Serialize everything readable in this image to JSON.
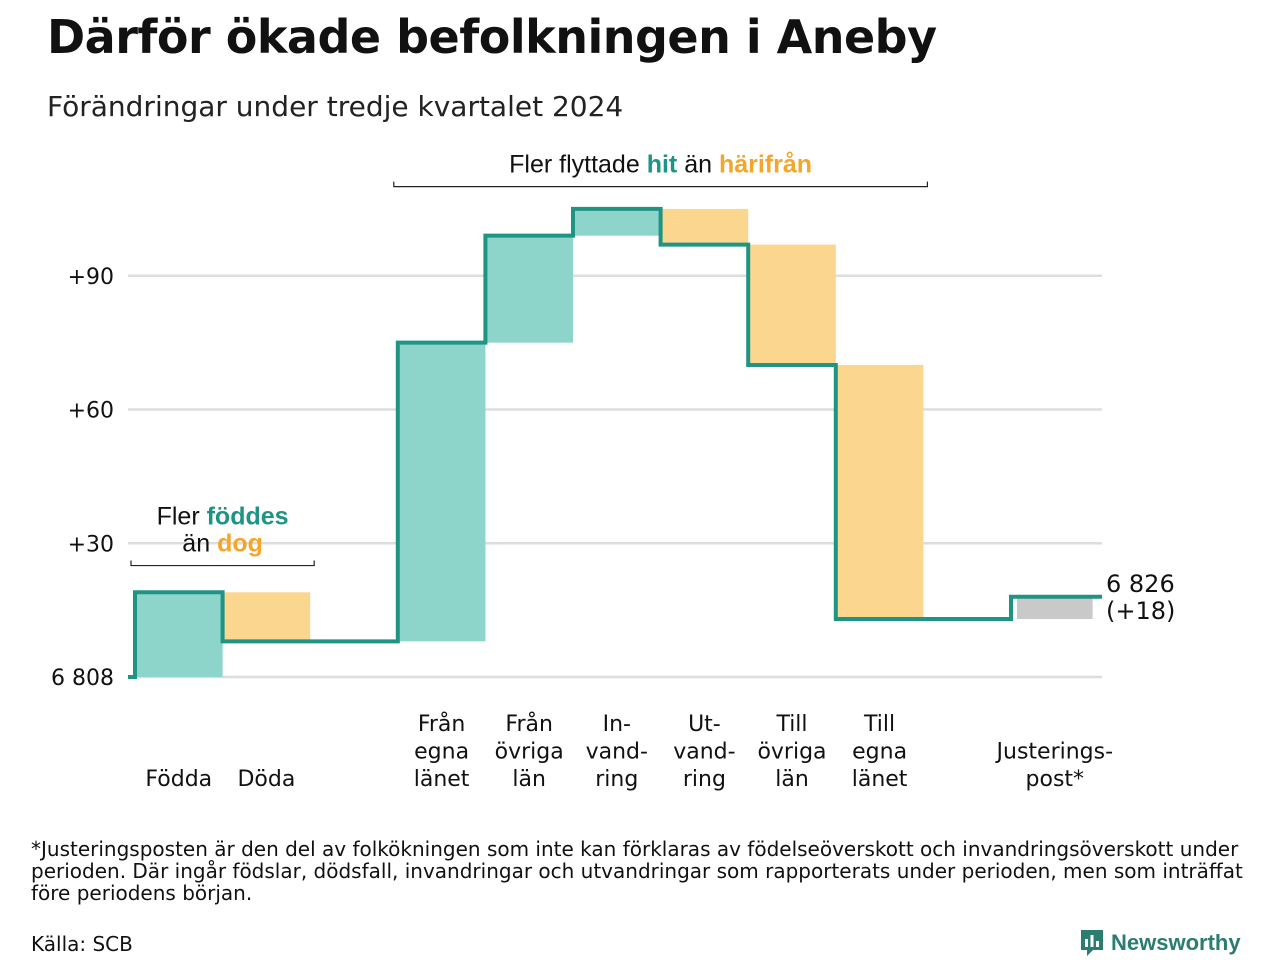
{
  "title": "Därför ökade befolkningen i Aneby",
  "subtitle": "Förändringar under tredje kvartalet 2024",
  "colors": {
    "teal": "#1f9484",
    "teal_light": "#8dd4cb",
    "orange": "#f4a62a",
    "orange_light": "#fbd68e",
    "gray": "#c9c9c9",
    "grid": "#dddddd"
  },
  "chart_data": {
    "type": "waterfall",
    "base_value": 6808,
    "end_value": 6826,
    "end_label": [
      "6 826",
      "(+18)"
    ],
    "y_ticks": [
      {
        "value": 0,
        "label": "6 808"
      },
      {
        "value": 30,
        "label": "+30"
      },
      {
        "value": 60,
        "label": "+60"
      },
      {
        "value": 90,
        "label": "+90"
      }
    ],
    "ylim": [
      0,
      105
    ],
    "steps": [
      {
        "name": "Födda",
        "label_lines": [
          "Födda"
        ],
        "change": 19,
        "kind": "plus"
      },
      {
        "name": "Döda",
        "label_lines": [
          "Döda"
        ],
        "change": -11,
        "kind": "minus"
      },
      {
        "name": "gap",
        "label_lines": [],
        "change": 0,
        "kind": "gap"
      },
      {
        "name": "Från egna länet",
        "label_lines": [
          "Från",
          "egna",
          "länet"
        ],
        "change": 67,
        "kind": "plus"
      },
      {
        "name": "Från övriga län",
        "label_lines": [
          "Från",
          "övriga",
          "län"
        ],
        "change": 24,
        "kind": "plus"
      },
      {
        "name": "Invandring",
        "label_lines": [
          "In-",
          "vand-",
          "ring"
        ],
        "change": 6,
        "kind": "plus"
      },
      {
        "name": "Utvandring",
        "label_lines": [
          "Ut-",
          "vand-",
          "ring"
        ],
        "change": -8,
        "kind": "minus"
      },
      {
        "name": "Till övriga län",
        "label_lines": [
          "Till",
          "övriga",
          "län"
        ],
        "change": -27,
        "kind": "minus"
      },
      {
        "name": "Till egna länet",
        "label_lines": [
          "Till",
          "egna",
          "länet"
        ],
        "change": -57,
        "kind": "minus"
      },
      {
        "name": "gap",
        "label_lines": [],
        "change": 0,
        "kind": "gap"
      },
      {
        "name": "Justeringspost*",
        "label_lines": [
          "Justerings-",
          "post*"
        ],
        "change": 5,
        "kind": "adjust"
      }
    ],
    "annotations": [
      {
        "id": "births",
        "from_step": 0,
        "to_step": 1,
        "value": 25,
        "line1": [
          {
            "text": "Fler ",
            "style": "plain"
          },
          {
            "text": "föddes",
            "style": "teal"
          }
        ],
        "line2": [
          {
            "text": "än ",
            "style": "plain"
          },
          {
            "text": "dog",
            "style": "orange"
          }
        ]
      },
      {
        "id": "migration",
        "from_step": 3,
        "to_step": 8,
        "value": 110,
        "line1": [
          {
            "text": "Fler flyttade ",
            "style": "plain"
          },
          {
            "text": "hit",
            "style": "teal"
          },
          {
            "text": " än ",
            "style": "plain"
          },
          {
            "text": "härifrån",
            "style": "orange"
          }
        ]
      }
    ]
  },
  "footnote": "*Justeringsposten är den del av folkökningen som inte kan förklaras av födelseöverskott och invandringsöverskott under perioden. Där ingår födslar, dödsfall, invandringar och utvandringar som rapporterats under perioden, men som inträffat före periodens början.",
  "source": "Källa: SCB",
  "brand": {
    "name": "Newsworthy",
    "icon": "newsworthy-logo-icon"
  }
}
